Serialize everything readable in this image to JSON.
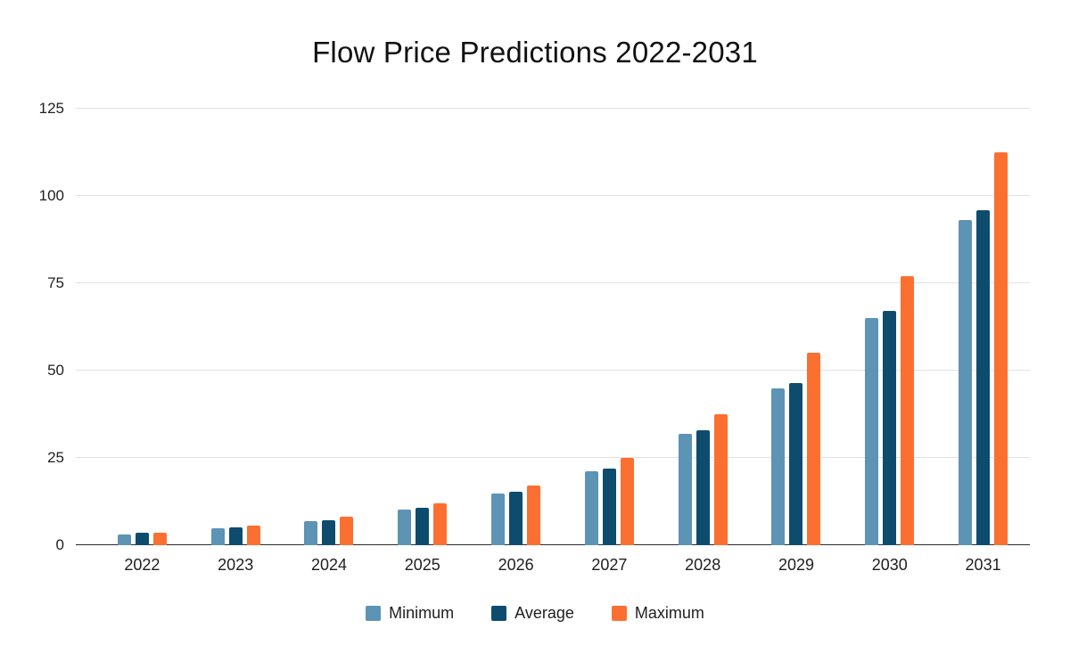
{
  "title": "Flow Price Predictions 2022-2031",
  "colors": {
    "minimum": "#5D93B5",
    "average": "#0E4C6E",
    "maximum": "#FB7031",
    "grid": "#E2E2E2",
    "axis_line": "#2B2B2B",
    "text": "#1F1F1F",
    "background": "#FFFFFF"
  },
  "chart_data": {
    "type": "bar",
    "title": "Flow Price Predictions 2022-2031",
    "categories": [
      "2022",
      "2023",
      "2024",
      "2025",
      "2026",
      "2027",
      "2028",
      "2029",
      "2030",
      "2031"
    ],
    "series": [
      {
        "name": "Minimum",
        "color": "#5D93B5",
        "values": [
          3,
          4.8,
          7,
          10.2,
          14.8,
          21.3,
          32,
          45,
          65,
          93
        ]
      },
      {
        "name": "Average",
        "color": "#0E4C6E",
        "values": [
          3.5,
          5.1,
          7.2,
          10.6,
          15.2,
          22,
          33,
          46.5,
          67,
          96
        ]
      },
      {
        "name": "Maximum",
        "color": "#FB7031",
        "values": [
          3.6,
          5.6,
          8.2,
          12.1,
          17.2,
          25.1,
          37.5,
          55.2,
          77,
          112.5
        ]
      }
    ],
    "xlabel": "",
    "ylabel": "",
    "ylim": [
      0,
      125
    ],
    "yticks": [
      0,
      25,
      50,
      75,
      100,
      125
    ],
    "grid": true,
    "legend_position": "bottom"
  }
}
